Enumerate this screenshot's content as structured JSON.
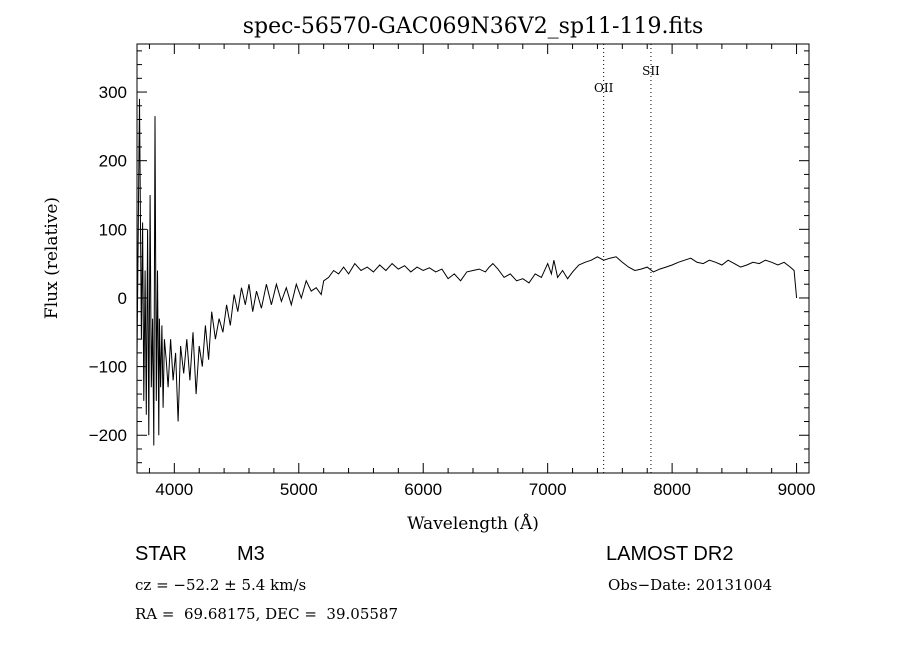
{
  "chart_data": {
    "type": "line",
    "title": "spec-56570-GAC069N36V2_sp11-119.fits",
    "xlabel": "Wavelength (Å)",
    "ylabel": "Flux (relative)",
    "xlim": [
      3700,
      9100
    ],
    "ylim": [
      -255,
      370
    ],
    "xticks": [
      4000,
      5000,
      6000,
      7000,
      8000,
      9000
    ],
    "yticks": [
      -200,
      -100,
      0,
      100,
      200,
      300
    ],
    "grid": false,
    "line_color": "#000000",
    "series": [
      {
        "x": [
          3700,
          3720,
          3735,
          3745,
          3755,
          3765,
          3775,
          3785,
          3795,
          3805,
          3815,
          3825,
          3835,
          3845,
          3855,
          3865,
          3875,
          3880,
          3890,
          3900,
          3910,
          3920,
          3935,
          3950,
          3970,
          3990,
          4010,
          4030,
          4050,
          4075,
          4100,
          4125,
          4150,
          4175,
          4200,
          4225,
          4250,
          4275,
          4300,
          4330,
          4360,
          4390,
          4420,
          4450,
          4480,
          4510,
          4540,
          4570,
          4600,
          4630,
          4660,
          4700,
          4740,
          4780,
          4820,
          4860,
          4900,
          4940,
          4980,
          5020,
          5060,
          5100,
          5140,
          5180,
          5200,
          5240,
          5280,
          5320,
          5360,
          5400,
          5450,
          5500,
          5550,
          5600,
          5650,
          5700,
          5750,
          5800,
          5850,
          5900,
          5950,
          6000,
          6050,
          6100,
          6150,
          6200,
          6250,
          6300,
          6350,
          6400,
          6450,
          6500,
          6530,
          6560,
          6600,
          6650,
          6700,
          6750,
          6800,
          6850,
          6900,
          6950,
          7000,
          7030,
          7050,
          7080,
          7120,
          7160,
          7200,
          7250,
          7300,
          7350,
          7400,
          7450,
          7500,
          7550,
          7600,
          7650,
          7700,
          7750,
          7800,
          7850,
          7900,
          7950,
          8000,
          8050,
          8100,
          8150,
          8200,
          8250,
          8300,
          8350,
          8400,
          8450,
          8500,
          8550,
          8600,
          8650,
          8700,
          8750,
          8800,
          8850,
          8900,
          8950,
          8980,
          9000
        ],
        "y": [
          -90,
          290,
          -60,
          110,
          -150,
          40,
          -170,
          100,
          -200,
          150,
          -130,
          -30,
          -215,
          265,
          -150,
          40,
          -200,
          -30,
          -130,
          -40,
          -160,
          -60,
          -90,
          -130,
          -60,
          -120,
          -80,
          -180,
          -70,
          -110,
          -60,
          -120,
          -50,
          -140,
          -70,
          -100,
          -40,
          -90,
          -20,
          -60,
          -30,
          -50,
          -10,
          -40,
          5,
          -20,
          15,
          -10,
          20,
          -20,
          10,
          -15,
          20,
          -10,
          20,
          -5,
          15,
          -10,
          20,
          0,
          25,
          10,
          15,
          5,
          25,
          30,
          40,
          35,
          45,
          35,
          50,
          40,
          45,
          38,
          48,
          40,
          50,
          42,
          47,
          38,
          45,
          40,
          44,
          38,
          42,
          28,
          35,
          25,
          38,
          40,
          42,
          38,
          45,
          50,
          42,
          30,
          35,
          25,
          28,
          22,
          35,
          30,
          50,
          35,
          55,
          30,
          40,
          28,
          38,
          48,
          52,
          55,
          60,
          55,
          58,
          60,
          52,
          45,
          40,
          42,
          45,
          38,
          42,
          45,
          48,
          52,
          55,
          58,
          52,
          50,
          55,
          52,
          48,
          55,
          50,
          45,
          48,
          52,
          50,
          55,
          52,
          48,
          52,
          45,
          40,
          0
        ]
      }
    ],
    "annotations": [
      {
        "label": "OII",
        "x": 7450,
        "y_label": 300
      },
      {
        "label": "SII",
        "x": 7830,
        "y_label": 325
      }
    ]
  },
  "info": {
    "object_class": "STAR",
    "subclass": "M3",
    "survey": "LAMOST DR2",
    "cz": "cz = −52.2 ± 5.4 km/s",
    "obs_date": "Obs−Date: 20131004",
    "radec": "RA =  69.68175, DEC =  39.05587"
  }
}
